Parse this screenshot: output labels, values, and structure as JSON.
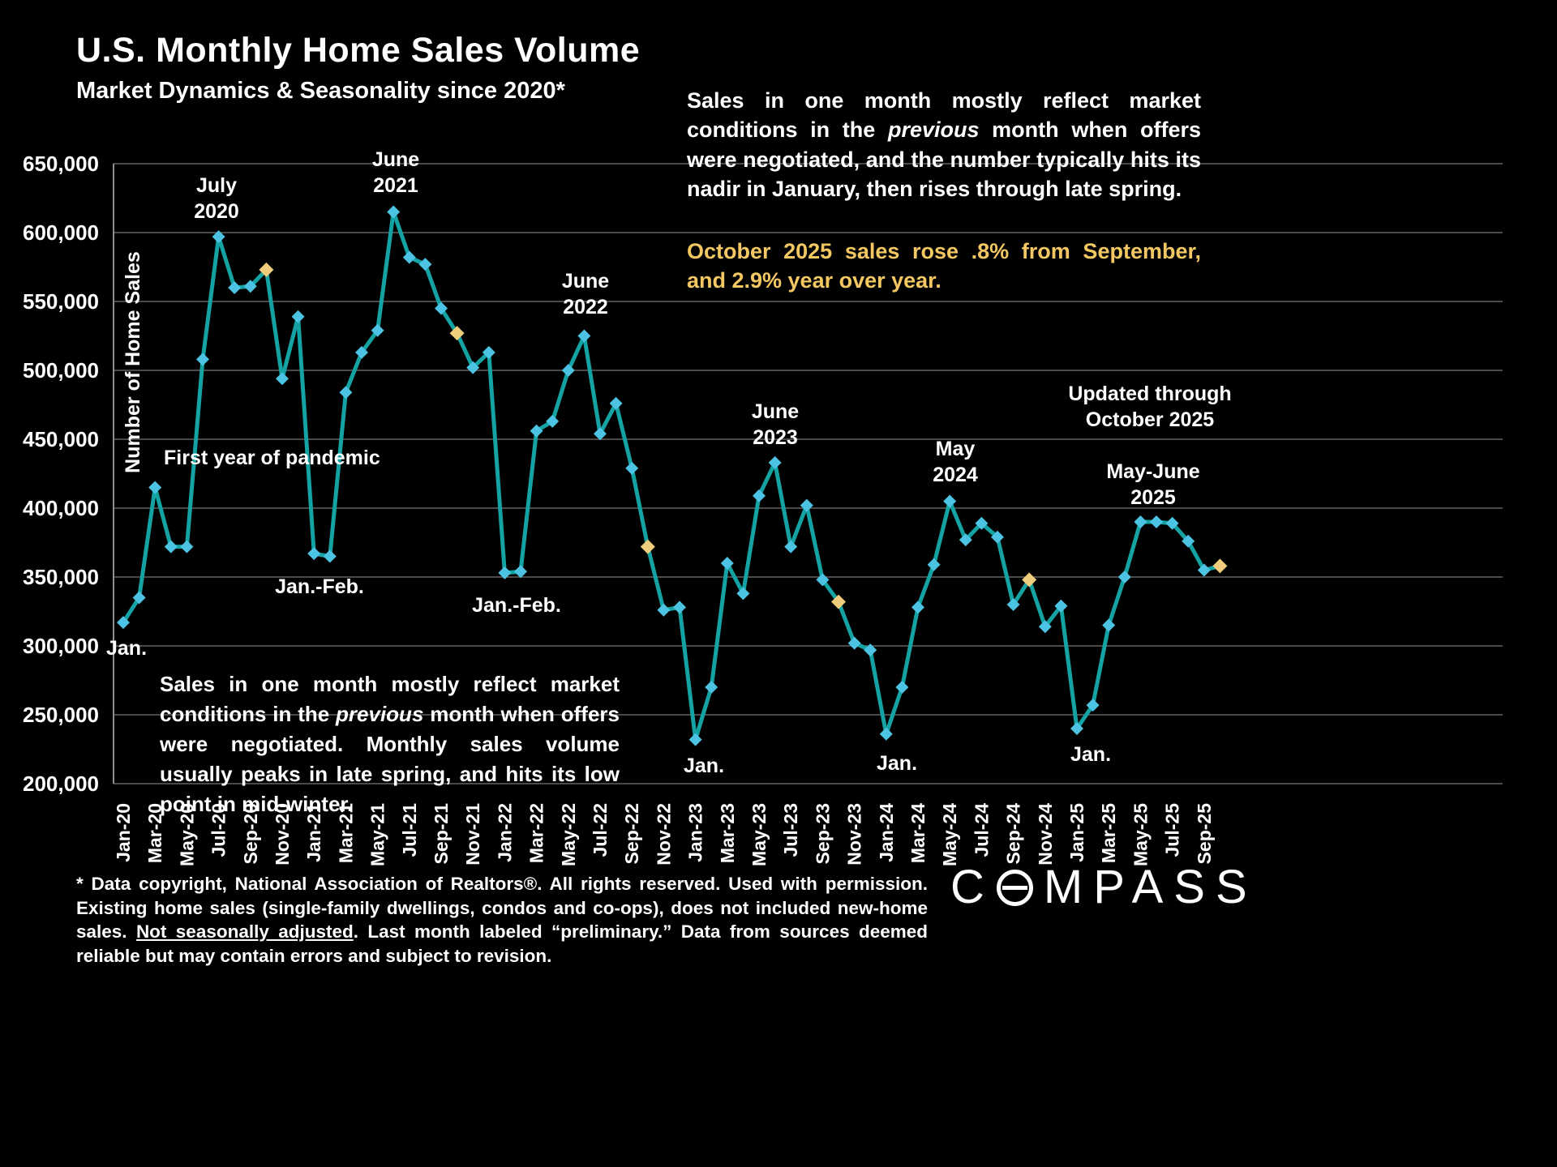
{
  "title": "U.S. Monthly Home Sales Volume",
  "subtitle": "Market Dynamics & Seasonality since 2020*",
  "colors": {
    "background": "#000000",
    "line": "#14a2a2",
    "marker": "#4cc3e2",
    "marker_highlight": "#f0cd7c",
    "grid": "#636363",
    "text": "#ffffff",
    "accent_gold": "#f3c863"
  },
  "right_paragraph": {
    "part1": "Sales in one month mostly reflect market conditions in the ",
    "italic": "previous",
    "part2": " month when offers were negotiated, and the number typically hits its nadir in January, then rises through late spring."
  },
  "gold_note": "October 2025 sales rose .8% from September, and 2.9% year over year.",
  "bottom_paragraph": {
    "part1": "Sales in one month mostly reflect market conditions in the ",
    "italic": "previous",
    "part2": " month when offers were negotiated. Monthly sales volume usually peaks in late spring, and hits its low point in mid-winter."
  },
  "annotations": {
    "july_2020": "July\n2020",
    "june_2021": "June\n2021",
    "june_2022": "June\n2022",
    "june_2023": "June\n2023",
    "may_2024": "May\n2024",
    "may_june_2025": "May-June\n2025",
    "updated": "Updated through\nOctober 2025",
    "pandemic": "First year of pandemic",
    "jan_feb_2021": "Jan.-Feb.",
    "jan_feb_2022": "Jan.-Feb.",
    "jan_2020": "Jan.",
    "jan_2023": "Jan.",
    "jan_2024": "Jan.",
    "jan_2025": "Jan."
  },
  "footnote": {
    "part1": "* Data copyright, National Association of Realtors®. All rights reserved. Used with permission. Existing home sales (single-family dwellings, condos and co-ops), does not included new-home sales. ",
    "underlined": "Not seasonally adjusted",
    "part2": ". Last month labeled “preliminary.” Data from sources deemed reliable but may contain errors and subject to revision."
  },
  "logo": {
    "prefix": "C",
    "suffix": "MPASS"
  },
  "chart_data": {
    "type": "line",
    "title": "U.S. Monthly Home Sales Volume",
    "subtitle": "Market Dynamics & Seasonality since 2020*",
    "ylabel": "Number of Home Sales",
    "ylim": [
      200000,
      650000
    ],
    "ytick_step": 50000,
    "grid": true,
    "legend": "none",
    "marker_note": "October of each year shown as gold diamond; all other months cyan diamonds",
    "categories": [
      "Jan-20",
      "Feb-20",
      "Mar-20",
      "Apr-20",
      "May-20",
      "Jun-20",
      "Jul-20",
      "Aug-20",
      "Sep-20",
      "Oct-20",
      "Nov-20",
      "Dec-20",
      "Jan-21",
      "Feb-21",
      "Mar-21",
      "Apr-21",
      "May-21",
      "Jun-21",
      "Jul-21",
      "Aug-21",
      "Sep-21",
      "Oct-21",
      "Nov-21",
      "Dec-21",
      "Jan-22",
      "Feb-22",
      "Mar-22",
      "Apr-22",
      "May-22",
      "Jun-22",
      "Jul-22",
      "Aug-22",
      "Sep-22",
      "Oct-22",
      "Nov-22",
      "Dec-22",
      "Jan-23",
      "Feb-23",
      "Mar-23",
      "Apr-23",
      "May-23",
      "Jun-23",
      "Jul-23",
      "Aug-23",
      "Sep-23",
      "Oct-23",
      "Nov-23",
      "Dec-23",
      "Jan-24",
      "Feb-24",
      "Mar-24",
      "Apr-24",
      "May-24",
      "Jun-24",
      "Jul-24",
      "Aug-24",
      "Sep-24",
      "Oct-24",
      "Nov-24",
      "Dec-24",
      "Jan-25",
      "Feb-25",
      "Mar-25",
      "Apr-25",
      "May-25",
      "Jun-25",
      "Jul-25",
      "Aug-25",
      "Sep-25",
      "Oct-25"
    ],
    "values": [
      317000,
      335000,
      415000,
      372000,
      372000,
      508000,
      597000,
      560000,
      561000,
      573000,
      494000,
      539000,
      367000,
      365000,
      484000,
      513000,
      529000,
      615000,
      582000,
      577000,
      545000,
      527000,
      502000,
      513000,
      353000,
      354000,
      456000,
      463000,
      500000,
      525000,
      454000,
      476000,
      429000,
      372000,
      326000,
      328000,
      232000,
      270000,
      360000,
      338000,
      409000,
      433000,
      372000,
      402000,
      348000,
      332000,
      302000,
      297000,
      236000,
      270000,
      328000,
      359000,
      405000,
      377000,
      389000,
      379000,
      330000,
      348000,
      314000,
      329000,
      240000,
      257000,
      315000,
      350000,
      390000,
      390000,
      389000,
      376000,
      355000,
      358000
    ],
    "highlight_indices": [
      9,
      21,
      33,
      45,
      57,
      69
    ]
  }
}
